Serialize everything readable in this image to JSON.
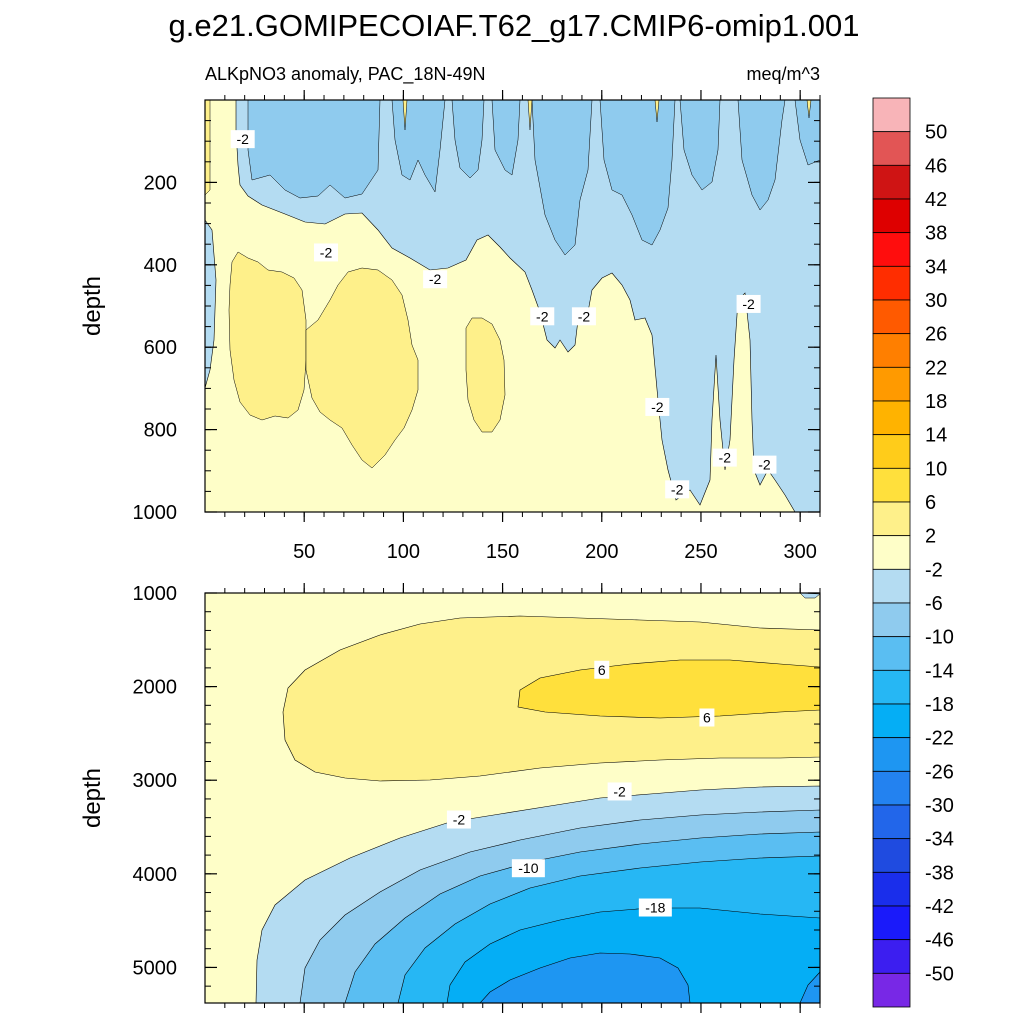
{
  "title": "g.e21.GOMIPECOIAF.T62_g17.CMIP6-omip1.001",
  "subtitle_left": "ALKpNO3 anomaly, PAC_18N-49N",
  "subtitle_right": "meq/m^3",
  "colorbar": {
    "levels": [
      "50",
      "46",
      "42",
      "38",
      "34",
      "30",
      "26",
      "22",
      "18",
      "14",
      "10",
      "6",
      "2",
      "-2",
      "-6",
      "-10",
      "-14",
      "-18",
      "-22",
      "-26",
      "-30",
      "-34",
      "-38",
      "-42",
      "-46",
      "-50"
    ],
    "colors": [
      "#F8B4B8",
      "#E25555",
      "#CF1414",
      "#DE0000",
      "#FF0D0D",
      "#FF2D00",
      "#FF5A00",
      "#FF7F00",
      "#FF9A00",
      "#FFB300",
      "#FFCC1A",
      "#FFE03C",
      "#FEF08A",
      "#FEFEC8",
      "#B4DCF2",
      "#8FCBEE",
      "#5ABEF2",
      "#26B7F4",
      "#05AEF5",
      "#1E96F2",
      "#2382F0",
      "#2266EA",
      "#1F4BE0",
      "#1A2EEB",
      "#1A1AFA",
      "#3C1EF0",
      "#7828E6"
    ]
  },
  "chart_data": [
    {
      "type": "heatmap",
      "panel": "top",
      "title": "",
      "xlabel": "",
      "ylabel": "depth",
      "xlim": [
        0,
        310
      ],
      "ylim": [
        1000,
        0
      ],
      "xticks": [
        "50",
        "100",
        "150",
        "200",
        "250",
        "300"
      ],
      "yticks": [
        "200",
        "400",
        "600",
        "800",
        "1000"
      ],
      "contour_labels": [
        {
          "x": 19,
          "y": 95,
          "text": "-2"
        },
        {
          "x": 61,
          "y": 370,
          "text": "-2"
        },
        {
          "x": 116,
          "y": 435,
          "text": "-2"
        },
        {
          "x": 170,
          "y": 525,
          "text": "-2"
        },
        {
          "x": 191,
          "y": 525,
          "text": "-2"
        },
        {
          "x": 228,
          "y": 745,
          "text": "-2"
        },
        {
          "x": 274,
          "y": 495,
          "text": "-2"
        },
        {
          "x": 262,
          "y": 868,
          "text": "-2"
        },
        {
          "x": 282,
          "y": 885,
          "text": "-2"
        },
        {
          "x": 238,
          "y": 945,
          "text": "-2"
        }
      ]
    },
    {
      "type": "heatmap",
      "panel": "bottom",
      "title": "",
      "xlabel": "",
      "ylabel": "depth",
      "xlim": [
        0,
        310
      ],
      "ylim": [
        5380,
        1000
      ],
      "yticks": [
        "1000",
        "2000",
        "3000",
        "4000",
        "5000"
      ],
      "contour_labels": [
        {
          "x": 200,
          "y": 1820,
          "text": "6"
        },
        {
          "x": 253,
          "y": 2330,
          "text": "6"
        },
        {
          "x": 209,
          "y": 3120,
          "text": "-2"
        },
        {
          "x": 128,
          "y": 3420,
          "text": "-2"
        },
        {
          "x": 163,
          "y": 3940,
          "text": "-10"
        },
        {
          "x": 227,
          "y": 4360,
          "text": "-18"
        }
      ]
    }
  ]
}
